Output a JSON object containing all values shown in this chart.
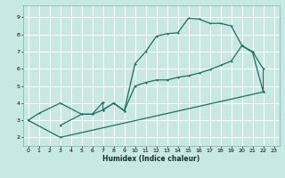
{
  "xlabel": "Humidex (Indice chaleur)",
  "bg_color": "#c8e8e4",
  "grid_color": "#ffffff",
  "line_color": "#1a7060",
  "xlim": [
    -0.5,
    23.5
  ],
  "ylim": [
    1.5,
    9.7
  ],
  "xticks": [
    0,
    1,
    2,
    3,
    4,
    5,
    6,
    7,
    8,
    9,
    10,
    11,
    12,
    13,
    14,
    15,
    16,
    17,
    18,
    19,
    20,
    21,
    22,
    23
  ],
  "yticks": [
    2,
    3,
    4,
    5,
    6,
    7,
    8,
    9
  ],
  "line_upper": {
    "x": [
      0,
      1,
      3,
      5,
      6,
      7,
      7,
      8,
      9,
      10,
      11,
      12,
      13,
      14,
      15,
      16,
      17,
      18,
      19,
      20,
      21,
      22
    ],
    "y": [
      3.0,
      3.4,
      4.0,
      3.35,
      3.35,
      4.05,
      3.6,
      4.0,
      3.55,
      6.3,
      7.0,
      7.9,
      8.05,
      8.1,
      8.95,
      8.9,
      8.65,
      8.65,
      8.5,
      7.35,
      6.95,
      4.65
    ]
  },
  "line_diag": {
    "x": [
      0,
      3,
      22
    ],
    "y": [
      3.0,
      2.0,
      4.65
    ]
  },
  "line_mid": {
    "x": [
      3,
      5,
      6,
      7,
      8,
      9,
      10,
      11,
      12,
      13,
      14,
      15,
      16,
      17,
      18,
      19,
      20,
      21,
      22,
      22
    ],
    "y": [
      2.7,
      3.35,
      3.35,
      3.6,
      4.0,
      3.55,
      5.0,
      5.2,
      5.35,
      5.35,
      5.5,
      5.6,
      5.75,
      5.95,
      6.2,
      6.45,
      7.35,
      7.0,
      6.0,
      4.65
    ]
  }
}
